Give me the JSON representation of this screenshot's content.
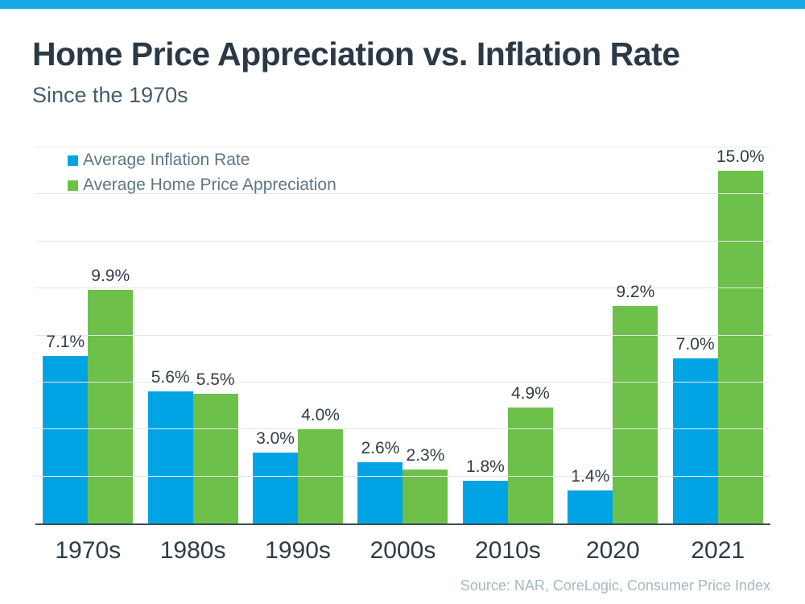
{
  "header": {
    "title": "Home Price Appreciation vs. Inflation Rate",
    "subtitle": "Since the 1970s"
  },
  "footer": {
    "source": "Source: NAR, CoreLogic, Consumer Price Index"
  },
  "colors": {
    "accent_strip": "#16a9e8",
    "inflation_blue": "#00a4e4",
    "appreciation_green": "#6dc04a",
    "gridline": "#e5e8ea",
    "axis_line": "#3d4d57",
    "title_text": "#2b3947",
    "subtitle_text": "#485c6b",
    "legend_text": "#5f7587",
    "data_label_text": "#323e48",
    "category_text": "#2d3c48",
    "source_text": "#a6b8c2"
  },
  "chart_data": {
    "type": "bar",
    "title": "Home Price Appreciation vs. Inflation Rate",
    "subtitle": "Since the 1970s",
    "categories": [
      "1970s",
      "1980s",
      "1990s",
      "2000s",
      "2010s",
      "2020",
      "2021"
    ],
    "series": [
      {
        "name": "Average Inflation Rate",
        "color": "#00a4e4",
        "values": [
          7.1,
          5.6,
          3.0,
          2.6,
          1.8,
          1.4,
          7.0
        ],
        "labels": [
          "7.1%",
          "5.6%",
          "3.0%",
          "2.6%",
          "1.8%",
          "1.4%",
          "7.0%"
        ]
      },
      {
        "name": "Average Home Price Appreciation",
        "color": "#6dc04a",
        "values": [
          9.9,
          5.5,
          4.0,
          2.3,
          4.9,
          9.2,
          15.0
        ],
        "labels": [
          "9.9%",
          "5.5%",
          "4.0%",
          "2.3%",
          "4.9%",
          "9.2%",
          "15.0%"
        ]
      }
    ],
    "xlabel": "",
    "ylabel": "",
    "ylim": [
      0,
      16
    ],
    "grid_step": 2,
    "grid": true,
    "y_tick_labels_visible": false,
    "legend_position": "top-left",
    "value_labels": "above-bars"
  }
}
